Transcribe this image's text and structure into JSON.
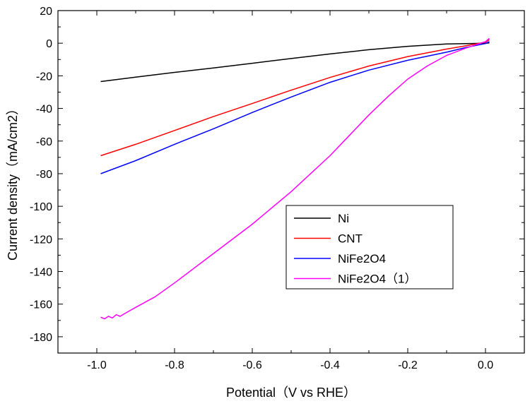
{
  "chart_data": {
    "type": "line",
    "title": "",
    "xlabel": "Potential（V vs RHE）",
    "ylabel": "Current density（mA/cm2）",
    "xlim": [
      -1.1,
      0.1
    ],
    "ylim": [
      -190,
      20
    ],
    "x_ticks": [
      -1.0,
      -0.8,
      -0.6,
      -0.4,
      -0.2,
      0.0
    ],
    "x_tick_labels": [
      "-1.0",
      "-0.8",
      "-0.6",
      "-0.4",
      "-0.2",
      "0.0"
    ],
    "y_ticks": [
      20,
      0,
      -20,
      -40,
      -60,
      -80,
      -100,
      -120,
      -140,
      -160,
      -180
    ],
    "y_tick_labels": [
      "20",
      "0",
      "-20",
      "-40",
      "-60",
      "-80",
      "-100",
      "-120",
      "-140",
      "-160",
      "-180"
    ],
    "grid": false,
    "legend_position": "lower-center",
    "series": [
      {
        "name": "Ni",
        "color": "#000000",
        "x": [
          -0.99,
          -0.9,
          -0.8,
          -0.7,
          -0.6,
          -0.5,
          -0.4,
          -0.3,
          -0.2,
          -0.1,
          -0.05,
          0.0,
          0.01
        ],
        "y": [
          -23.5,
          -20.8,
          -17.9,
          -15.2,
          -12.3,
          -9.4,
          -6.6,
          -4.0,
          -1.9,
          -0.5,
          -0.2,
          0.0,
          0.2
        ]
      },
      {
        "name": "CNT",
        "color": "#ff0000",
        "x": [
          -0.99,
          -0.9,
          -0.8,
          -0.7,
          -0.6,
          -0.5,
          -0.4,
          -0.3,
          -0.2,
          -0.1,
          -0.05,
          0.0,
          0.01
        ],
        "y": [
          -69,
          -62,
          -53.5,
          -45,
          -37,
          -28.8,
          -21,
          -14,
          -8.2,
          -3.6,
          -1.5,
          0.6,
          2.2
        ]
      },
      {
        "name": "NiFe2O4",
        "color": "#0000ff",
        "x": [
          -0.99,
          -0.9,
          -0.8,
          -0.7,
          -0.6,
          -0.5,
          -0.4,
          -0.3,
          -0.2,
          -0.1,
          -0.05,
          0.0,
          0.01
        ],
        "y": [
          -80,
          -72,
          -62,
          -52.5,
          -42.5,
          -33,
          -24,
          -16.5,
          -10.5,
          -5.5,
          -2.6,
          -0.2,
          1.0
        ]
      },
      {
        "name": "NiFe2O4（1）",
        "color": "#ff00ff",
        "x": [
          -0.99,
          -0.98,
          -0.97,
          -0.96,
          -0.95,
          -0.94,
          -0.93,
          -0.9,
          -0.85,
          -0.8,
          -0.7,
          -0.6,
          -0.5,
          -0.4,
          -0.35,
          -0.3,
          -0.25,
          -0.2,
          -0.15,
          -0.1,
          -0.05,
          0.0,
          0.01
        ],
        "y": [
          -168,
          -169,
          -167.5,
          -168.5,
          -166.5,
          -167.5,
          -166,
          -162,
          -155.5,
          -147,
          -129,
          -111,
          -91,
          -69,
          -56.5,
          -44,
          -32.5,
          -22,
          -14,
          -7.5,
          -3.0,
          1.0,
          3.0
        ]
      }
    ]
  }
}
